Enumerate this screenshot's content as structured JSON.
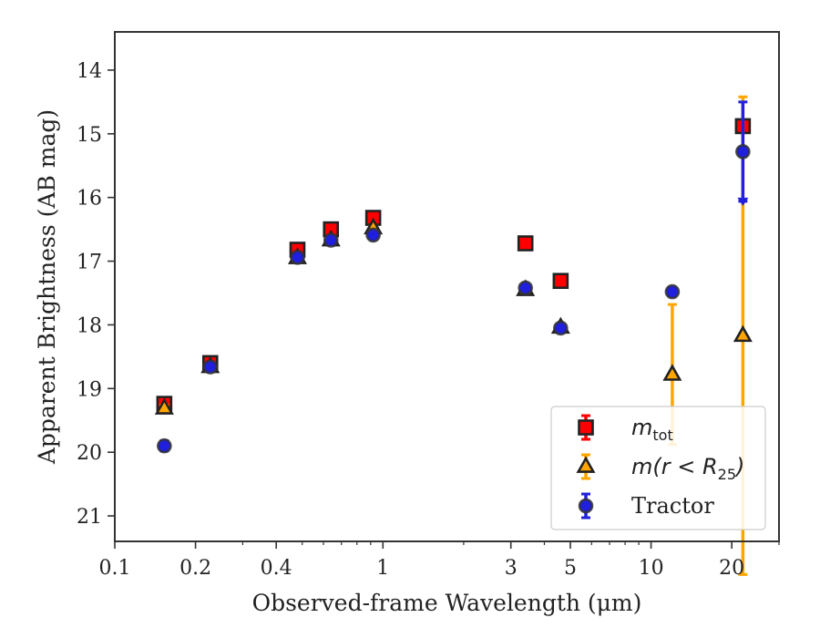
{
  "chart_data": {
    "type": "scatter",
    "xlabel": "Observed-frame Wavelength (μm)",
    "ylabel": "Apparent Brightness (AB mag)",
    "xscale": "log",
    "xlim": [
      0.1,
      30
    ],
    "ylim": [
      21.4,
      13.4
    ],
    "y_inverted": true,
    "xticks": [
      {
        "value": 0.1,
        "label": "0.1"
      },
      {
        "value": 0.2,
        "label": "0.2"
      },
      {
        "value": 0.4,
        "label": "0.4"
      },
      {
        "value": 1,
        "label": "1"
      },
      {
        "value": 3,
        "label": "3"
      },
      {
        "value": 5,
        "label": "5"
      },
      {
        "value": 10,
        "label": "10"
      },
      {
        "value": 20,
        "label": "20"
      }
    ],
    "yticks": [
      14,
      15,
      16,
      17,
      18,
      19,
      20,
      21
    ],
    "grid": false,
    "legend_position": "lower-right",
    "series": [
      {
        "name": "m_tot",
        "legend_label": {
          "base": "m",
          "sub": "tot"
        },
        "marker": "square",
        "color": "#ff0000",
        "edge": "#222222",
        "errcolor": "#ff0000",
        "points": [
          {
            "x": 0.153,
            "y": 19.24,
            "err": 0.1
          },
          {
            "x": 0.227,
            "y": 18.6,
            "err": 0.05
          },
          {
            "x": 0.48,
            "y": 16.82,
            "err": 0.05
          },
          {
            "x": 0.64,
            "y": 16.5,
            "err": 0.05
          },
          {
            "x": 0.92,
            "y": 16.32,
            "err": 0.05
          },
          {
            "x": 3.4,
            "y": 16.72,
            "err": 0.03
          },
          {
            "x": 4.6,
            "y": 17.31,
            "err": 0.03
          },
          {
            "x": 22.0,
            "y": 14.88,
            "err": 0.05
          }
        ]
      },
      {
        "name": "m(r<R_25)",
        "legend_label": {
          "base": "m(r < R",
          "sub": "25",
          "close": ")"
        },
        "marker": "triangle",
        "color": "#ffa500",
        "edge": "#222222",
        "errcolor": "#ffa500",
        "points": [
          {
            "x": 0.153,
            "y": 19.31,
            "err": 0.05
          },
          {
            "x": 0.227,
            "y": 18.66,
            "err": 0.03
          },
          {
            "x": 0.48,
            "y": 16.95,
            "err": 0.03
          },
          {
            "x": 0.64,
            "y": 16.67,
            "err": 0.03
          },
          {
            "x": 0.92,
            "y": 16.48,
            "err": 0.03
          },
          {
            "x": 3.4,
            "y": 17.45,
            "err": 0.03
          },
          {
            "x": 4.6,
            "y": 18.04,
            "err": 0.03
          },
          {
            "x": 12.0,
            "y": 18.78,
            "err": 1.1
          },
          {
            "x": 22.0,
            "y": 18.17,
            "err": 3.75
          }
        ]
      },
      {
        "name": "Tractor",
        "legend_label": {
          "base": "Tractor"
        },
        "marker": "circle",
        "color": "#1f1fdd",
        "edge": "#333333",
        "errcolor": "#2020dd",
        "points": [
          {
            "x": 0.153,
            "y": 19.9,
            "err": 0.08
          },
          {
            "x": 0.227,
            "y": 18.66,
            "err": 0.05
          },
          {
            "x": 0.48,
            "y": 16.94,
            "err": 0.05
          },
          {
            "x": 0.64,
            "y": 16.67,
            "err": 0.05
          },
          {
            "x": 0.92,
            "y": 16.59,
            "err": 0.05
          },
          {
            "x": 3.4,
            "y": 17.42,
            "err": 0.05
          },
          {
            "x": 4.6,
            "y": 18.05,
            "err": 0.05
          },
          {
            "x": 12.0,
            "y": 17.48,
            "err": 0.06
          },
          {
            "x": 22.0,
            "y": 15.28,
            "err": 0.78
          }
        ]
      }
    ]
  }
}
